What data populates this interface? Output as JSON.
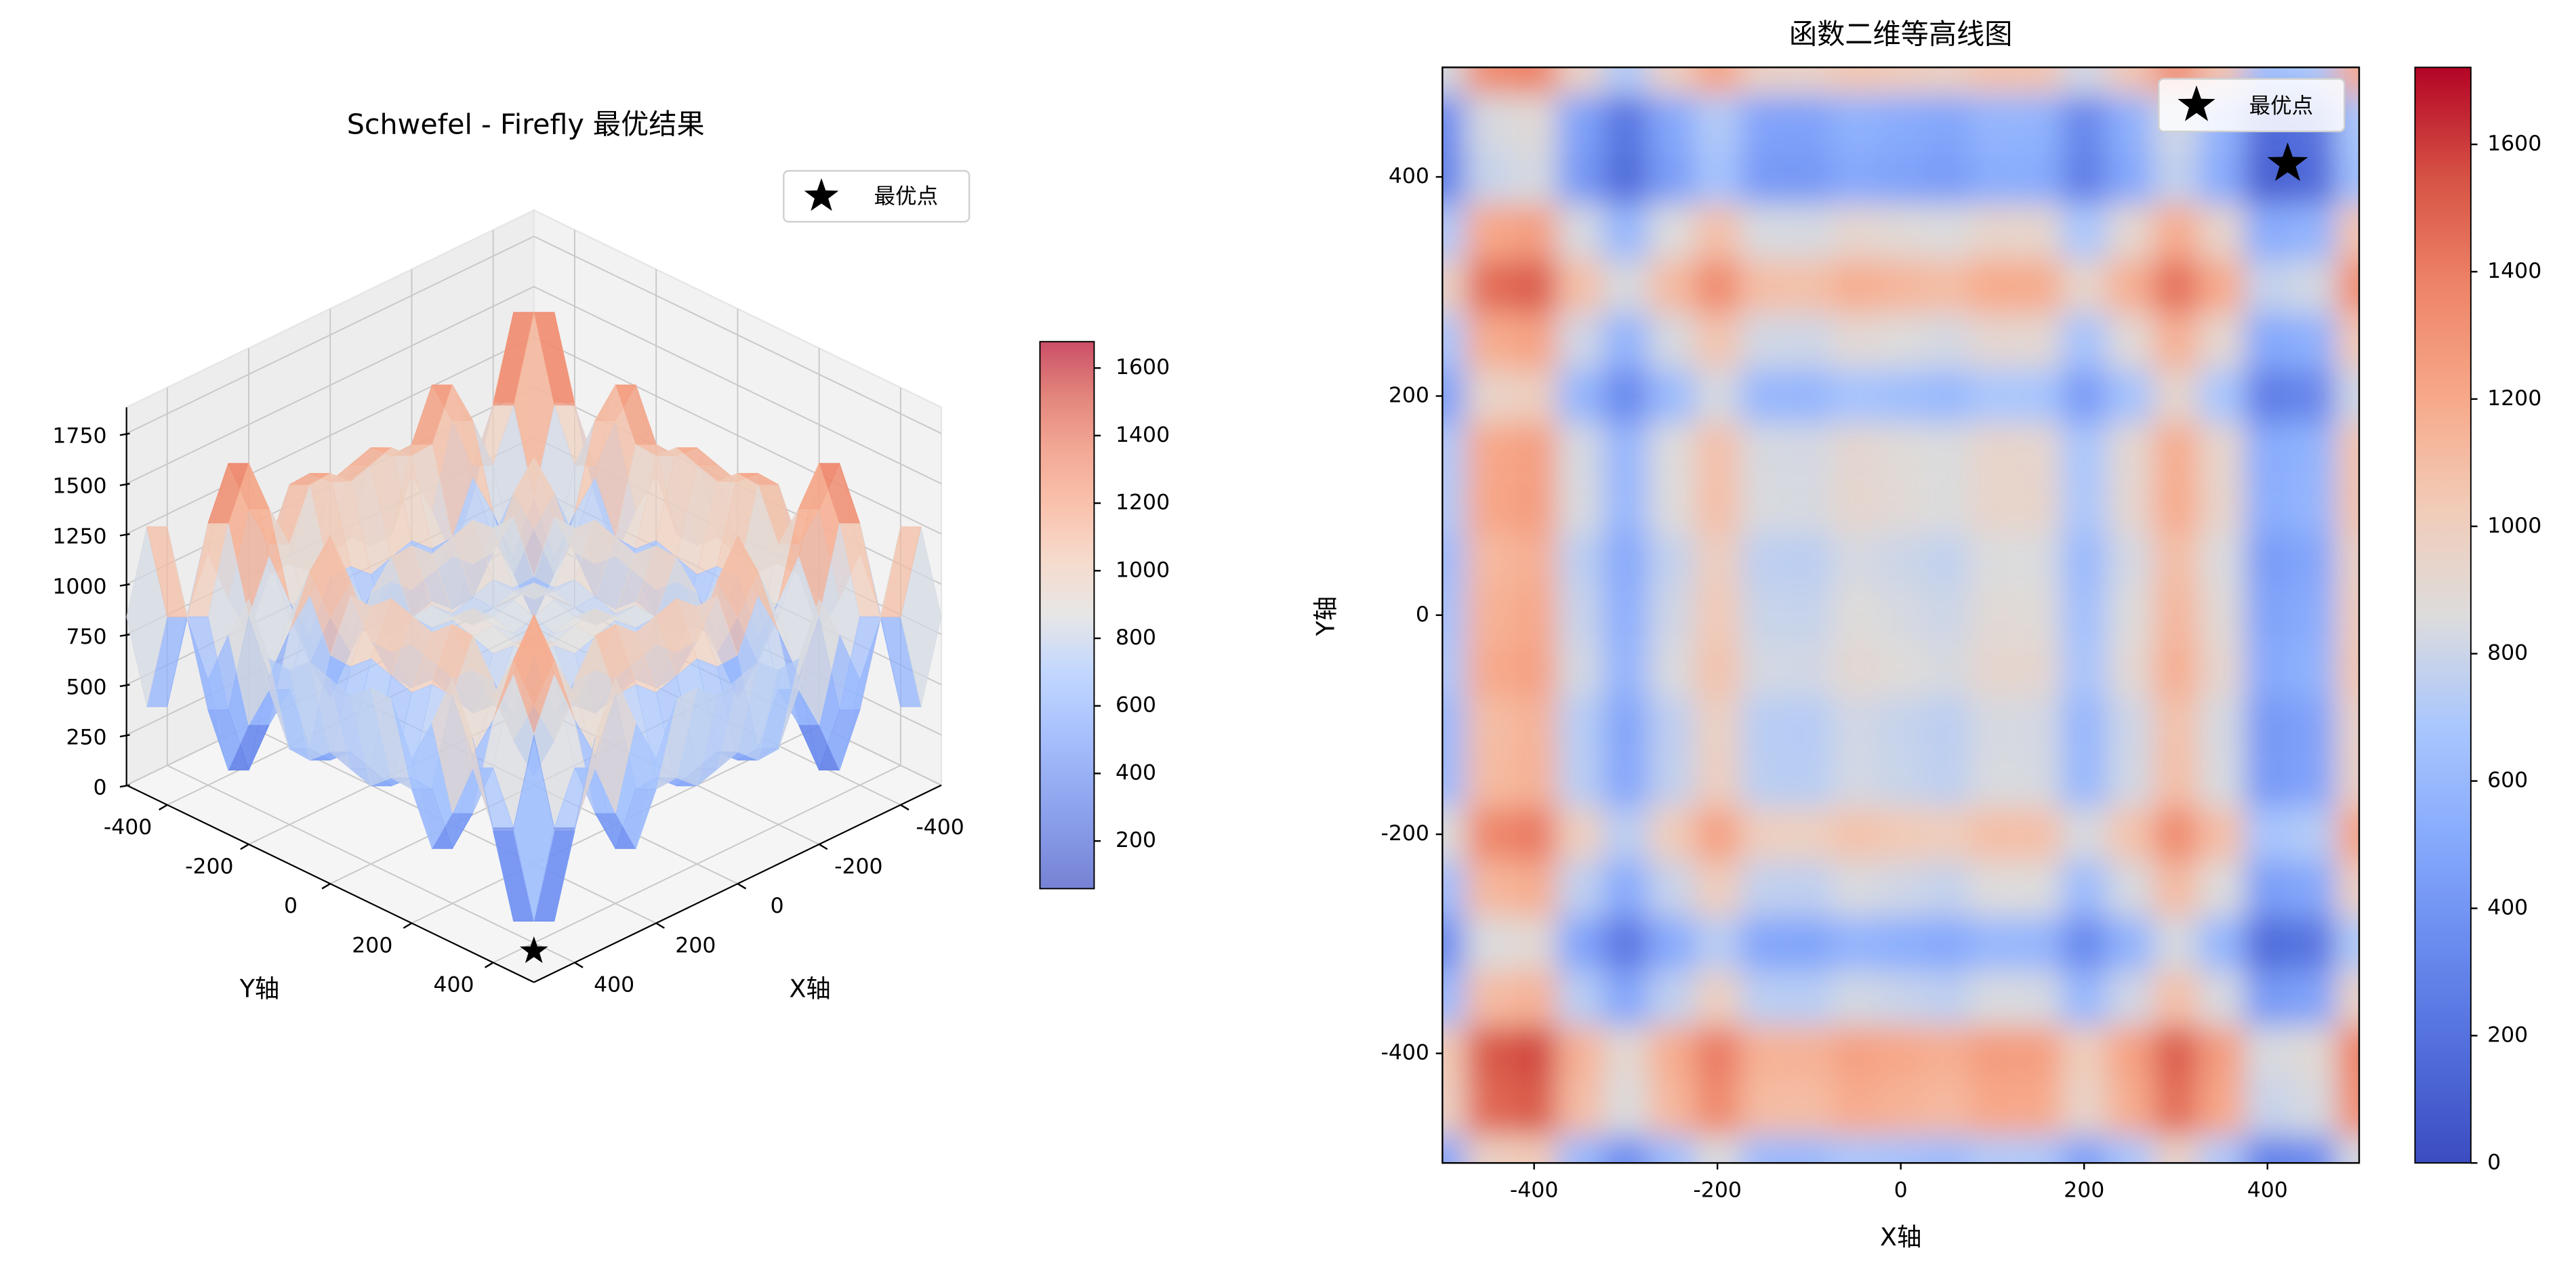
{
  "chart_data": [
    {
      "type": "surface3d",
      "title": "Schwefel - Firefly 最优结果",
      "x_label": "X轴",
      "y_label": "Y轴",
      "x": [
        -500,
        -450,
        -400,
        -350,
        -300,
        -250,
        -200,
        -150,
        -100,
        -50,
        0,
        50,
        100,
        150,
        200,
        250,
        300,
        350,
        400,
        450,
        500
      ],
      "y": [
        -500,
        -450,
        -400,
        -350,
        -300,
        -250,
        -200,
        -150,
        -100,
        -50,
        0,
        50,
        100,
        150,
        200,
        250,
        300,
        350,
        400,
        450,
        500
      ],
      "z": [
        [
          476,
          973,
          1022,
          608,
          357,
          631,
          857,
          610,
          603,
          692,
          657,
          622,
          711,
          704,
          457,
          683,
          957,
          707,
          292,
          341,
          838
        ],
        [
          973,
          1470,
          1519,
          1105,
          854,
          1128,
          1354,
          1107,
          1100,
          1189,
          1154,
          1119,
          1208,
          1201,
          954,
          1180,
          1454,
          1204,
          789,
          838,
          1335
        ],
        [
          1022,
          1519,
          1568,
          1154,
          903,
          1177,
          1403,
          1156,
          1149,
          1238,
          1203,
          1168,
          1257,
          1250,
          1003,
          1229,
          1503,
          1253,
          838,
          887,
          1384
        ],
        [
          608,
          1105,
          1154,
          740,
          489,
          763,
          989,
          742,
          735,
          824,
          789,
          754,
          843,
          836,
          589,
          815,
          1089,
          839,
          424,
          473,
          970
        ],
        [
          357,
          854,
          903,
          489,
          238,
          512,
          738,
          491,
          484,
          573,
          538,
          503,
          592,
          585,
          338,
          564,
          838,
          588,
          173,
          222,
          719
        ],
        [
          631,
          1128,
          1177,
          763,
          512,
          786,
          1012,
          765,
          758,
          847,
          812,
          777,
          866,
          859,
          612,
          838,
          1112,
          862,
          447,
          496,
          993
        ],
        [
          857,
          1354,
          1403,
          989,
          738,
          1012,
          1238,
          991,
          984,
          1073,
          1038,
          1003,
          1092,
          1085,
          838,
          1064,
          1338,
          1088,
          673,
          722,
          1219
        ],
        [
          610,
          1107,
          1156,
          742,
          491,
          765,
          991,
          744,
          737,
          826,
          791,
          756,
          845,
          838,
          591,
          817,
          1091,
          841,
          426,
          475,
          972
        ],
        [
          603,
          1100,
          1149,
          735,
          484,
          758,
          984,
          737,
          730,
          819,
          784,
          749,
          838,
          831,
          584,
          810,
          1084,
          834,
          419,
          468,
          965
        ],
        [
          692,
          1189,
          1238,
          824,
          573,
          847,
          1073,
          826,
          819,
          908,
          873,
          838,
          927,
          920,
          673,
          899,
          1173,
          923,
          508,
          557,
          1054
        ],
        [
          657,
          1154,
          1203,
          789,
          538,
          812,
          1038,
          791,
          784,
          873,
          838,
          803,
          892,
          885,
          638,
          864,
          1138,
          888,
          473,
          522,
          1019
        ],
        [
          622,
          1119,
          1168,
          754,
          503,
          777,
          1003,
          756,
          749,
          838,
          803,
          768,
          857,
          850,
          603,
          829,
          1103,
          853,
          438,
          487,
          984
        ],
        [
          711,
          1208,
          1257,
          843,
          592,
          866,
          1092,
          845,
          838,
          927,
          892,
          857,
          946,
          939,
          692,
          918,
          1192,
          942,
          527,
          576,
          1073
        ],
        [
          704,
          1201,
          1250,
          836,
          585,
          859,
          1085,
          838,
          831,
          920,
          885,
          850,
          939,
          932,
          685,
          911,
          1185,
          935,
          520,
          569,
          1066
        ],
        [
          457,
          954,
          1003,
          589,
          338,
          612,
          838,
          591,
          584,
          673,
          638,
          603,
          692,
          685,
          438,
          664,
          938,
          688,
          273,
          322,
          819
        ],
        [
          683,
          1180,
          1229,
          815,
          564,
          838,
          1064,
          817,
          810,
          899,
          864,
          829,
          918,
          911,
          664,
          890,
          1164,
          914,
          499,
          548,
          1045
        ],
        [
          957,
          1454,
          1503,
          1089,
          838,
          1112,
          1338,
          1091,
          1084,
          1173,
          1138,
          1103,
          1192,
          1185,
          938,
          1164,
          1438,
          1188,
          773,
          822,
          1319
        ],
        [
          707,
          1204,
          1253,
          839,
          588,
          862,
          1088,
          841,
          834,
          923,
          888,
          853,
          942,
          935,
          688,
          914,
          1188,
          938,
          523,
          572,
          1069
        ],
        [
          292,
          789,
          838,
          424,
          173,
          447,
          673,
          426,
          419,
          508,
          473,
          438,
          527,
          520,
          273,
          499,
          773,
          523,
          108,
          157,
          654
        ],
        [
          341,
          838,
          887,
          473,
          222,
          496,
          722,
          475,
          468,
          557,
          522,
          487,
          576,
          569,
          322,
          548,
          822,
          572,
          157,
          206,
          703
        ],
        [
          838,
          1335,
          1384,
          970,
          719,
          993,
          1219,
          972,
          965,
          1054,
          1019,
          984,
          1073,
          1066,
          819,
          1045,
          1319,
          1069,
          654,
          703,
          1200
        ]
      ],
      "colormap": "coolwarm",
      "alpha": 0.7,
      "xlim": [
        -500,
        500
      ],
      "ylim": [
        -500,
        500
      ],
      "zlim": [
        0,
        1880
      ],
      "xticks": [
        -400,
        -200,
        0,
        200,
        400
      ],
      "yticks": [
        -400,
        -200,
        0,
        200,
        400
      ],
      "zticks": [
        0,
        250,
        500,
        750,
        1000,
        1250,
        1500,
        1750
      ],
      "clim": [
        59,
        1678
      ],
      "colorbar_ticks": [
        200,
        400,
        600,
        800,
        1000,
        1200,
        1400,
        1600
      ],
      "legend": "upper right",
      "best_point": {
        "name": "最优点",
        "x": 421,
        "y": 421,
        "z": 0,
        "color": "#000000"
      }
    },
    {
      "type": "contour",
      "title": "函数二维等高线图",
      "x_label": "X轴",
      "y_label": "Y轴",
      "x": [
        -500,
        -450,
        -400,
        -350,
        -300,
        -250,
        -200,
        -150,
        -100,
        -50,
        0,
        50,
        100,
        150,
        200,
        250,
        300,
        350,
        400,
        450,
        500
      ],
      "y": [
        -500,
        -450,
        -400,
        -350,
        -300,
        -250,
        -200,
        -150,
        -100,
        -50,
        0,
        50,
        100,
        150,
        200,
        250,
        300,
        350,
        400,
        450,
        500
      ],
      "z": [
        [
          476,
          973,
          1022,
          608,
          357,
          631,
          857,
          610,
          603,
          692,
          657,
          622,
          711,
          704,
          457,
          683,
          957,
          707,
          292,
          341,
          838
        ],
        [
          973,
          1470,
          1519,
          1105,
          854,
          1128,
          1354,
          1107,
          1100,
          1189,
          1154,
          1119,
          1208,
          1201,
          954,
          1180,
          1454,
          1204,
          789,
          838,
          1335
        ],
        [
          1022,
          1519,
          1568,
          1154,
          903,
          1177,
          1403,
          1156,
          1149,
          1238,
          1203,
          1168,
          1257,
          1250,
          1003,
          1229,
          1503,
          1253,
          838,
          887,
          1384
        ],
        [
          608,
          1105,
          1154,
          740,
          489,
          763,
          989,
          742,
          735,
          824,
          789,
          754,
          843,
          836,
          589,
          815,
          1089,
          839,
          424,
          473,
          970
        ],
        [
          357,
          854,
          903,
          489,
          238,
          512,
          738,
          491,
          484,
          573,
          538,
          503,
          592,
          585,
          338,
          564,
          838,
          588,
          173,
          222,
          719
        ],
        [
          631,
          1128,
          1177,
          763,
          512,
          786,
          1012,
          765,
          758,
          847,
          812,
          777,
          866,
          859,
          612,
          838,
          1112,
          862,
          447,
          496,
          993
        ],
        [
          857,
          1354,
          1403,
          989,
          738,
          1012,
          1238,
          991,
          984,
          1073,
          1038,
          1003,
          1092,
          1085,
          838,
          1064,
          1338,
          1088,
          673,
          722,
          1219
        ],
        [
          610,
          1107,
          1156,
          742,
          491,
          765,
          991,
          744,
          737,
          826,
          791,
          756,
          845,
          838,
          591,
          817,
          1091,
          841,
          426,
          475,
          972
        ],
        [
          603,
          1100,
          1149,
          735,
          484,
          758,
          984,
          737,
          730,
          819,
          784,
          749,
          838,
          831,
          584,
          810,
          1084,
          834,
          419,
          468,
          965
        ],
        [
          692,
          1189,
          1238,
          824,
          573,
          847,
          1073,
          826,
          819,
          908,
          873,
          838,
          927,
          920,
          673,
          899,
          1173,
          923,
          508,
          557,
          1054
        ],
        [
          657,
          1154,
          1203,
          789,
          538,
          812,
          1038,
          791,
          784,
          873,
          838,
          803,
          892,
          885,
          638,
          864,
          1138,
          888,
          473,
          522,
          1019
        ],
        [
          622,
          1119,
          1168,
          754,
          503,
          777,
          1003,
          756,
          749,
          838,
          803,
          768,
          857,
          850,
          603,
          829,
          1103,
          853,
          438,
          487,
          984
        ],
        [
          711,
          1208,
          1257,
          843,
          592,
          866,
          1092,
          845,
          838,
          927,
          892,
          857,
          946,
          939,
          692,
          918,
          1192,
          942,
          527,
          576,
          1073
        ],
        [
          704,
          1201,
          1250,
          836,
          585,
          859,
          1085,
          838,
          831,
          920,
          885,
          850,
          939,
          932,
          685,
          911,
          1185,
          935,
          520,
          569,
          1066
        ],
        [
          457,
          954,
          1003,
          589,
          338,
          612,
          838,
          591,
          584,
          673,
          638,
          603,
          692,
          685,
          438,
          664,
          938,
          688,
          273,
          322,
          819
        ],
        [
          683,
          1180,
          1229,
          815,
          564,
          838,
          1064,
          817,
          810,
          899,
          864,
          829,
          918,
          911,
          664,
          890,
          1164,
          914,
          499,
          548,
          1045
        ],
        [
          957,
          1454,
          1503,
          1089,
          838,
          1112,
          1338,
          1091,
          1084,
          1173,
          1138,
          1103,
          1192,
          1185,
          938,
          1164,
          1438,
          1188,
          773,
          822,
          1319
        ],
        [
          707,
          1204,
          1253,
          839,
          588,
          862,
          1088,
          841,
          834,
          923,
          888,
          853,
          942,
          935,
          688,
          914,
          1188,
          938,
          523,
          572,
          1069
        ],
        [
          292,
          789,
          838,
          424,
          173,
          447,
          673,
          426,
          419,
          508,
          473,
          438,
          527,
          520,
          273,
          499,
          773,
          523,
          108,
          157,
          654
        ],
        [
          341,
          838,
          887,
          473,
          222,
          496,
          722,
          475,
          468,
          557,
          522,
          487,
          576,
          569,
          322,
          548,
          822,
          572,
          157,
          206,
          703
        ],
        [
          838,
          1335,
          1384,
          970,
          719,
          993,
          1219,
          972,
          965,
          1054,
          1019,
          984,
          1073,
          1066,
          819,
          1045,
          1319,
          1069,
          654,
          703,
          1200
        ]
      ],
      "colormap": "coolwarm",
      "xlim": [
        -500,
        500
      ],
      "ylim": [
        -500,
        500
      ],
      "xticks": [
        -400,
        -200,
        0,
        200,
        400
      ],
      "yticks": [
        -400,
        -200,
        0,
        200,
        400
      ],
      "clim": [
        0,
        1721
      ],
      "colorbar_ticks": [
        0,
        200,
        400,
        600,
        800,
        1000,
        1200,
        1400,
        1600
      ],
      "legend": "upper right",
      "best_point": {
        "name": "最优点",
        "x": 422,
        "y": 412,
        "color": "#000000"
      }
    }
  ]
}
